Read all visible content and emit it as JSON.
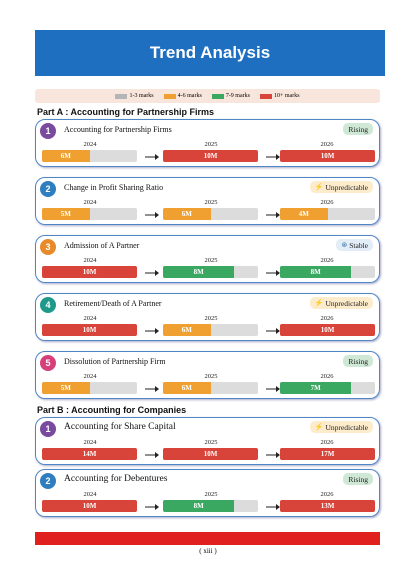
{
  "header": {
    "title": "Trend Analysis"
  },
  "legend": [
    {
      "label": "1-3 marks",
      "color": "#b5b5b5"
    },
    {
      "label": "4-6 marks",
      "color": "#f0a030"
    },
    {
      "label": "7-9 marks",
      "color": "#3aa860"
    },
    {
      "label": "10+ marks",
      "color": "#d9443a"
    }
  ],
  "parts": [
    {
      "title": "Part A : Accounting for Partnership Firms",
      "topics": [
        {
          "number": 1,
          "name": "Accounting for Partnership Firms",
          "trend": "Rising",
          "trend_color": "#cfe8d5",
          "cells": [
            {
              "year": "2024",
              "marks": "6M",
              "color": "#f0a030"
            },
            {
              "year": "2025",
              "marks": "10M",
              "color": "#d9443a"
            },
            {
              "year": "2026",
              "marks": "10M",
              "color": "#d9443a"
            }
          ]
        },
        {
          "number": 2,
          "name": "Change in Profit Sharing Ratio",
          "trend": "Unpredictable",
          "trend_color": "#fdeccc",
          "cells": [
            {
              "year": "2024",
              "marks": "5M",
              "color": "#f0a030"
            },
            {
              "year": "2025",
              "marks": "6M",
              "color": "#f0a030"
            },
            {
              "year": "2026",
              "marks": "4M",
              "color": "#f0a030"
            }
          ]
        },
        {
          "number": 3,
          "name": "Admission of A Partner",
          "trend": "Stable",
          "trend_color": "#e3edf7",
          "cells": [
            {
              "year": "2024",
              "marks": "10M",
              "color": "#d9443a"
            },
            {
              "year": "2025",
              "marks": "8M",
              "color": "#3aa860"
            },
            {
              "year": "2026",
              "marks": "8M",
              "color": "#3aa860"
            }
          ]
        },
        {
          "number": 4,
          "name": "Retirement/Death of A Partner",
          "trend": "Unpredictable",
          "trend_color": "#fdeccc",
          "cells": [
            {
              "year": "2024",
              "marks": "10M",
              "color": "#d9443a"
            },
            {
              "year": "2025",
              "marks": "6M",
              "color": "#f0a030"
            },
            {
              "year": "2026",
              "marks": "10M",
              "color": "#d9443a"
            }
          ]
        },
        {
          "number": 5,
          "name": "Dissolution of Partnership Firm",
          "trend": "Rising",
          "trend_color": "#cfe8d5",
          "cells": [
            {
              "year": "2024",
              "marks": "5M",
              "color": "#f0a030"
            },
            {
              "year": "2025",
              "marks": "6M",
              "color": "#f0a030"
            },
            {
              "year": "2026",
              "marks": "7M",
              "color": "#3aa860"
            }
          ]
        }
      ]
    },
    {
      "title": "Part B : Accounting for Companies",
      "topics": [
        {
          "number": 1,
          "name": "Accounting for Share Capital",
          "trend": "Unpredictable",
          "trend_color": "#fdeccc",
          "cells": [
            {
              "year": "2024",
              "marks": "14M",
              "color": "#d9443a"
            },
            {
              "year": "2025",
              "marks": "10M",
              "color": "#d9443a"
            },
            {
              "year": "2026",
              "marks": "17M",
              "color": "#d9443a"
            }
          ]
        },
        {
          "number": 2,
          "name": "Accounting for Debentures",
          "trend": "Rising",
          "trend_color": "#cfe8d5",
          "cells": [
            {
              "year": "2024",
              "marks": "10M",
              "color": "#d9443a"
            },
            {
              "year": "2025",
              "marks": "8M",
              "color": "#3aa860"
            },
            {
              "year": "2026",
              "marks": "13M",
              "color": "#d9443a"
            }
          ]
        }
      ]
    }
  ],
  "footer": {
    "page": "( xiii )"
  }
}
